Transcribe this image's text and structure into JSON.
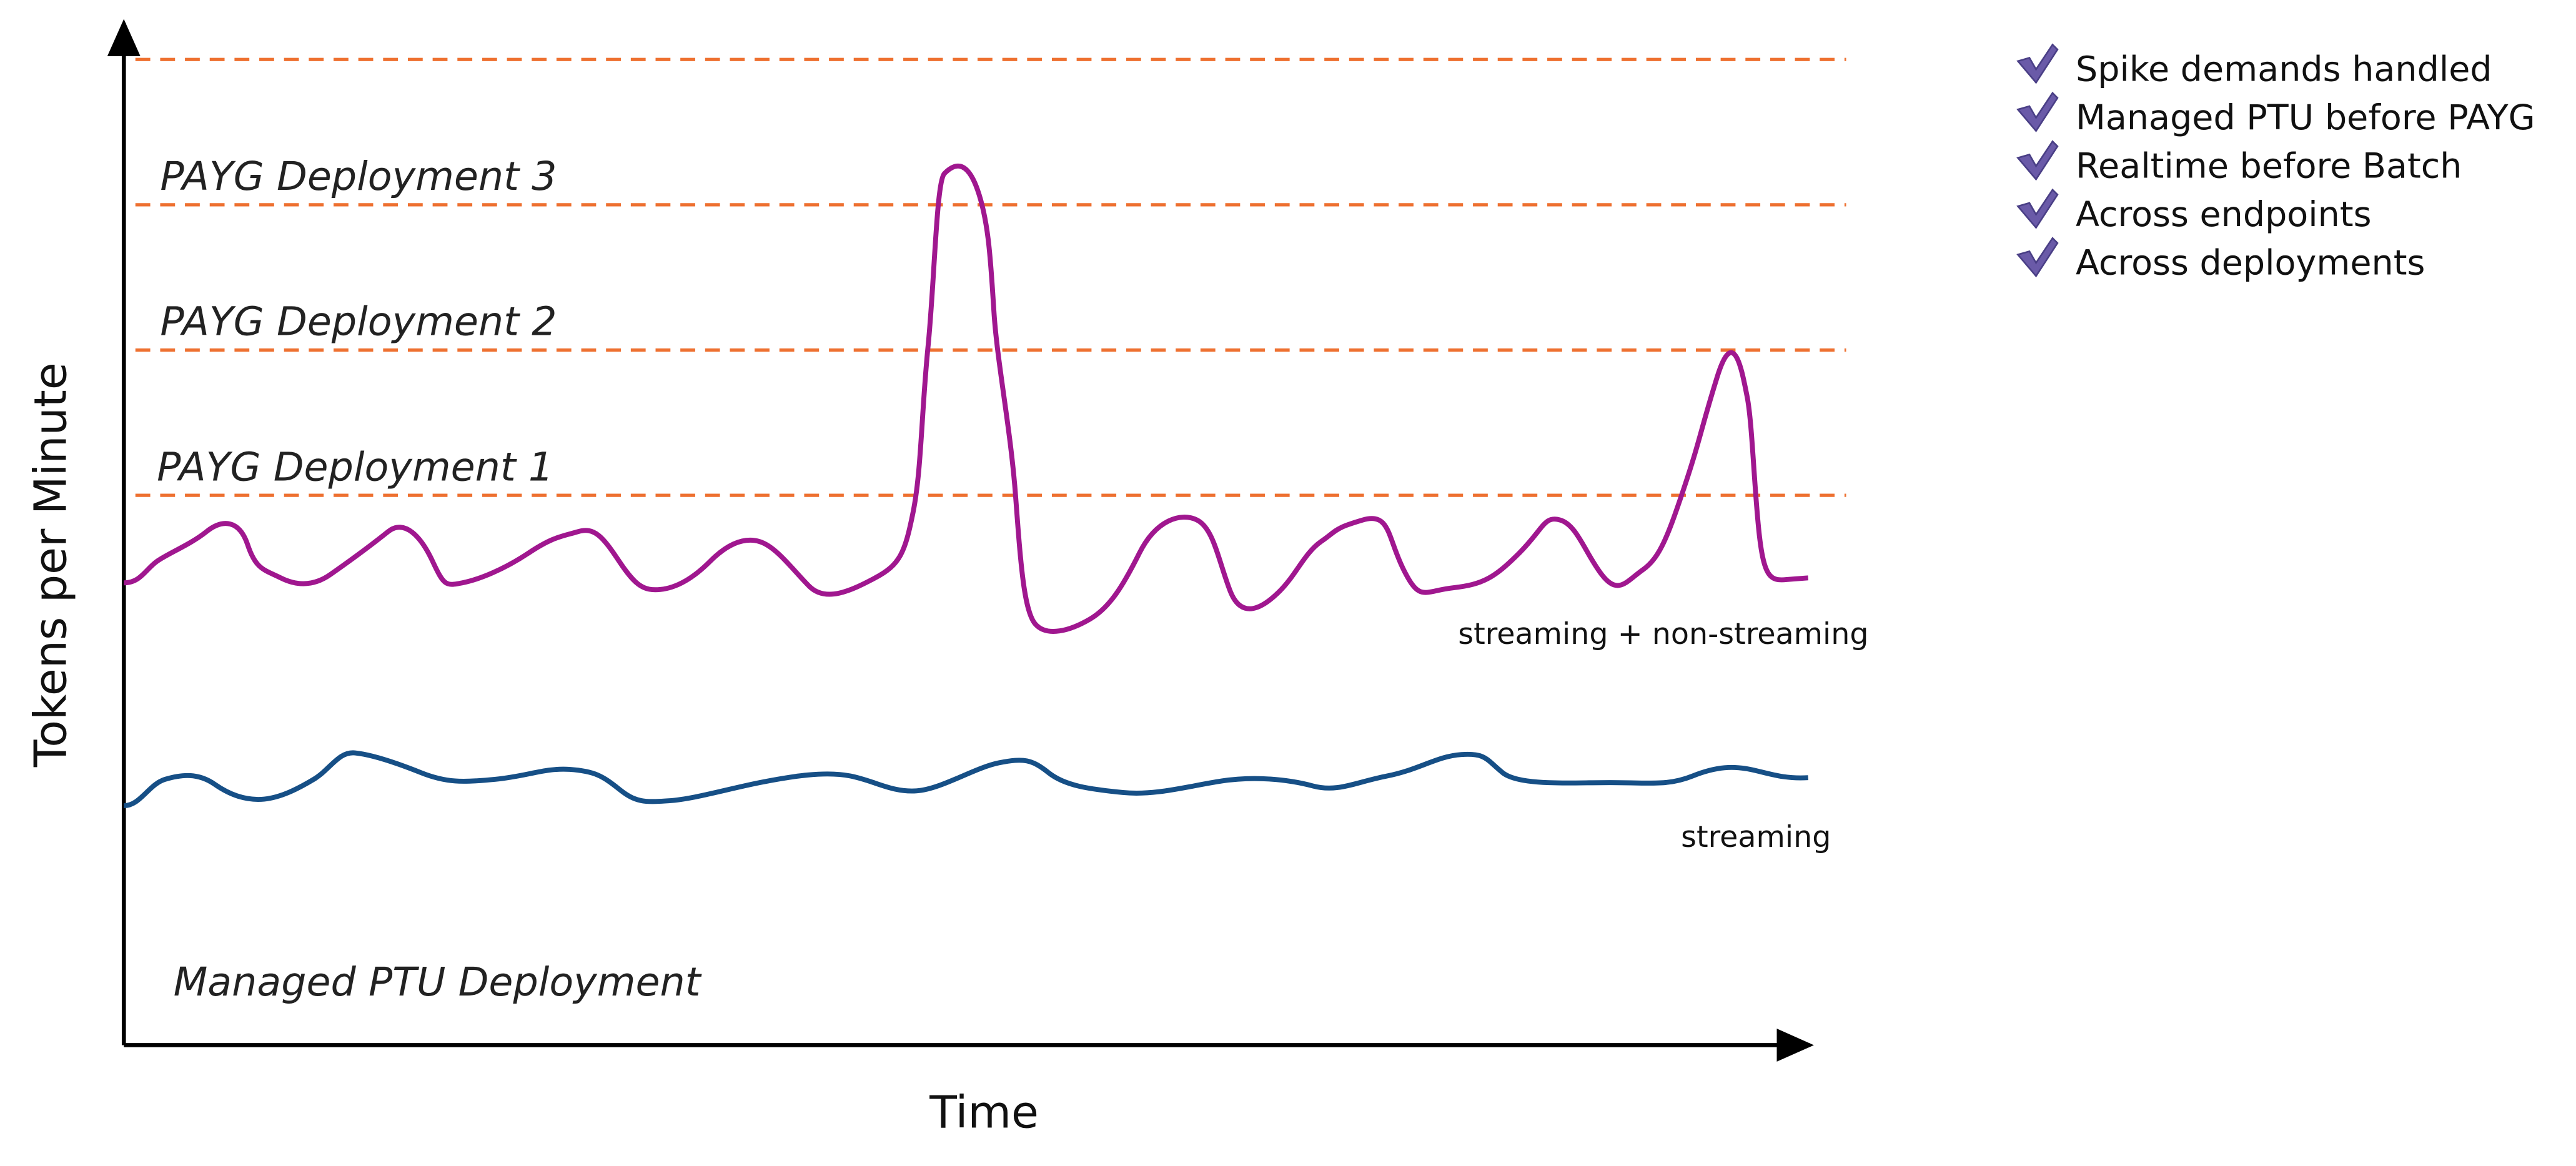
{
  "axes": {
    "y_label": "Tokens per Minute",
    "x_label": "Time"
  },
  "tiers": [
    {
      "label": "PAYG Deployment 3"
    },
    {
      "label": "PAYG Deployment 2"
    },
    {
      "label": "PAYG Deployment 1"
    }
  ],
  "base_label": "Managed PTU Deployment",
  "curves": [
    {
      "label": "streaming + non-streaming"
    },
    {
      "label": "streaming"
    }
  ],
  "checklist": [
    "Spike demands handled",
    "Managed PTU before PAYG",
    "Realtime before Batch",
    "Across endpoints",
    "Across deployments"
  ]
}
